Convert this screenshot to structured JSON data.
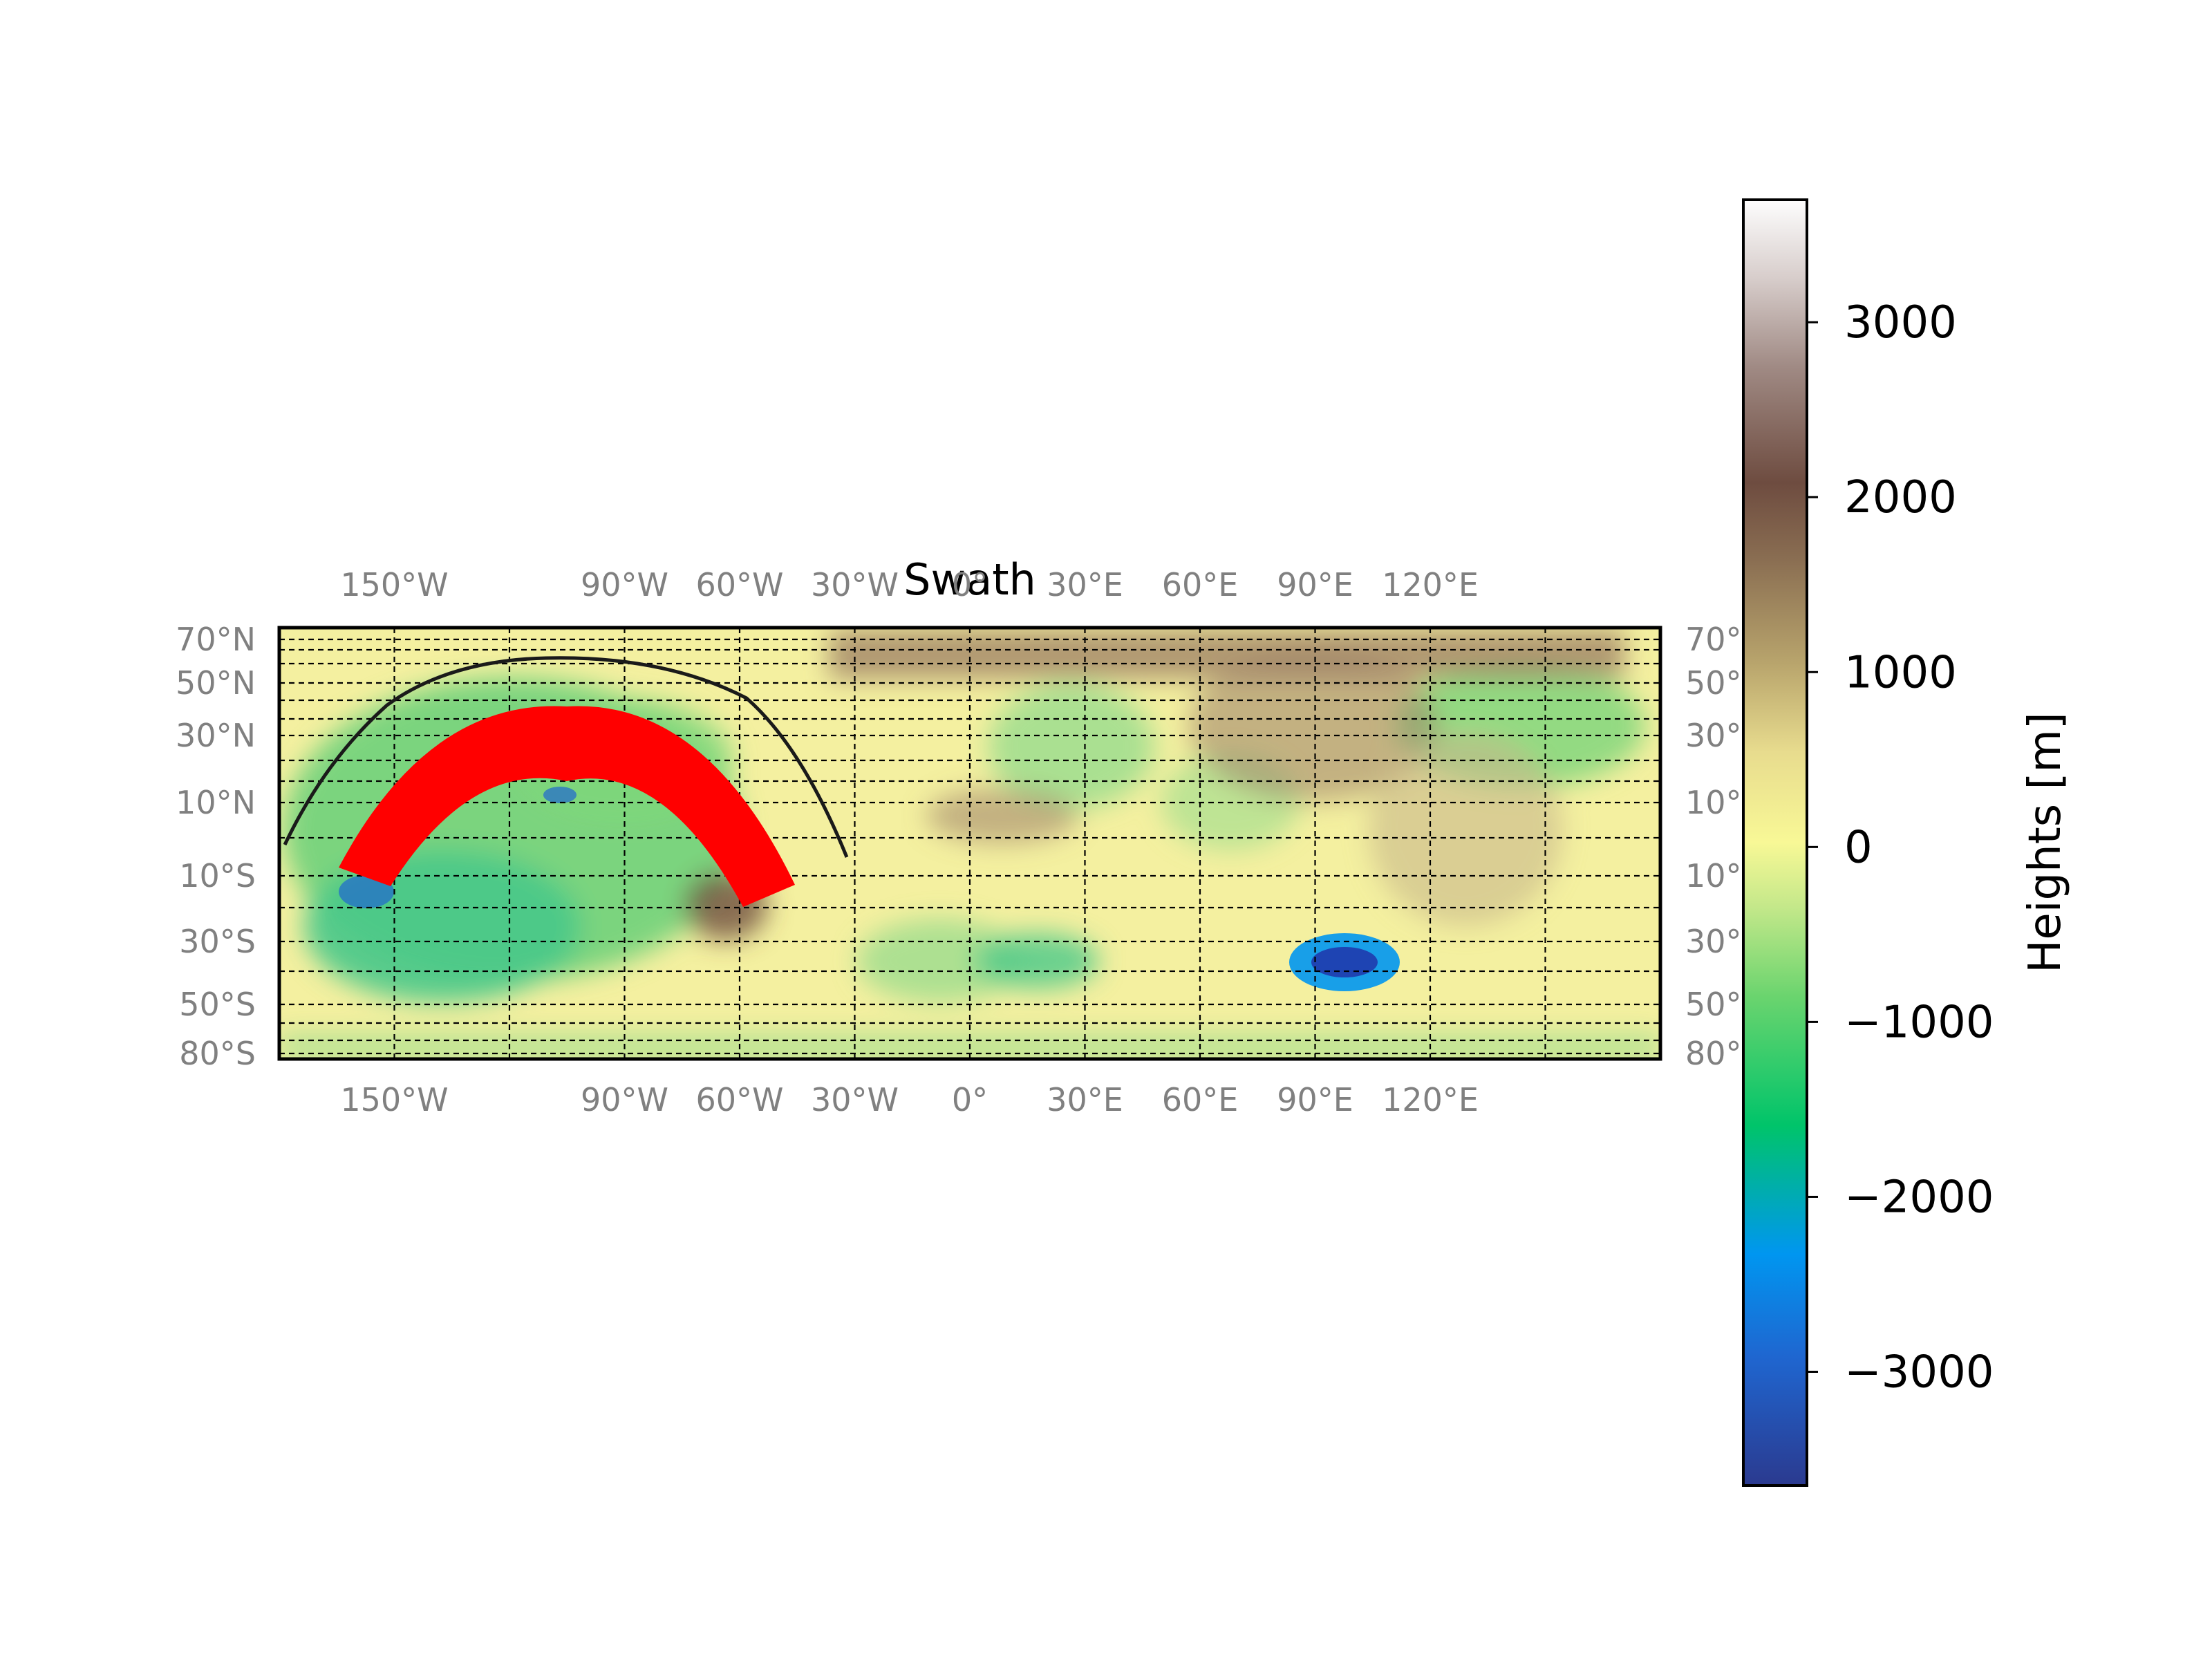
{
  "title": "Swath",
  "map": {
    "lon_labels": [
      "150°W",
      "90°W",
      "60°W",
      "30°W",
      "0°",
      "30°E",
      "60°E",
      "90°E",
      "120°E"
    ],
    "lon_values": [
      -150,
      -90,
      -60,
      -30,
      0,
      30,
      60,
      90,
      120
    ],
    "lat_labels": [
      "70°N",
      "50°N",
      "30°N",
      "10°N",
      "10°S",
      "30°S",
      "50°S",
      "80°S"
    ],
    "lat_values": [
      70,
      50,
      30,
      10,
      -10,
      -30,
      -50,
      -80
    ],
    "lon_range": [
      -180,
      180
    ],
    "lat_range": [
      -90,
      90
    ],
    "gridlines": true,
    "gridline_style": "dashed"
  },
  "colorbar": {
    "label": "Heights [m]",
    "ticks": [
      "3000",
      "2000",
      "1000",
      "0",
      "−1000",
      "−2000",
      "−3000"
    ],
    "tick_values": [
      3000,
      2000,
      1000,
      0,
      -1000,
      -2000,
      -3000
    ],
    "range": [
      -3650,
      3700
    ],
    "colormap": "terrain-like",
    "colors": [
      "#2b3a8f",
      "#1f66d0",
      "#0096f0",
      "#00c46a",
      "#6ad46e",
      "#c4e88a",
      "#f8f896",
      "#e8dc8e",
      "#b8a46c",
      "#8a6e52",
      "#6e4c40",
      "#a08a84",
      "#d8cecc",
      "#fdfdfd"
    ]
  },
  "overlays": {
    "swath_color": "#ff0000",
    "track_color": "#1a1a1a"
  }
}
